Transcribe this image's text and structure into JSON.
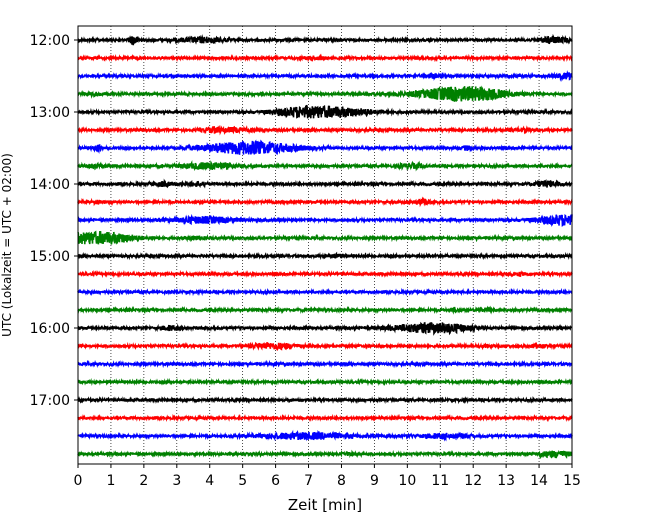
{
  "chart_data": {
    "type": "line",
    "title": "",
    "xlabel": "Zeit  [min]",
    "ylabel": "UTC (Lokalzeit = UTC + 02:00)",
    "xlim": [
      0,
      15
    ],
    "x_ticks": [
      0,
      1,
      2,
      3,
      4,
      5,
      6,
      7,
      8,
      9,
      10,
      11,
      12,
      13,
      14,
      15
    ],
    "y_ticks": [
      {
        "value": 0,
        "label": "12:00"
      },
      {
        "value": 4,
        "label": "13:00"
      },
      {
        "value": 8,
        "label": "14:00"
      },
      {
        "value": 12,
        "label": "15:00"
      },
      {
        "value": 16,
        "label": "16:00"
      },
      {
        "value": 20,
        "label": "17:00"
      }
    ],
    "vertical_grid": true,
    "grid_style": "dotted",
    "trace_colors": [
      "#000000",
      "#ff0000",
      "#0000ff",
      "#008000"
    ],
    "traces": [
      {
        "start": "12:00",
        "events": [
          [
            1.7,
            4.5,
            0.1
          ],
          [
            3.8,
            2.5,
            0.5
          ],
          [
            14.4,
            3,
            0.3
          ]
        ]
      },
      {
        "start": "12:15",
        "events": [
          [
            7.3,
            1.2,
            0.2
          ]
        ]
      },
      {
        "start": "12:30",
        "events": [
          [
            10.8,
            2,
            0.1
          ],
          [
            14.9,
            2.5,
            0.3
          ]
        ]
      },
      {
        "start": "12:45",
        "events": [
          [
            0.5,
            1.5,
            0.1
          ],
          [
            11.5,
            6,
            0.9
          ],
          [
            12.4,
            2,
            0.6
          ]
        ]
      },
      {
        "start": "13:00",
        "events": [
          [
            7.6,
            5,
            0.9
          ],
          [
            6.6,
            2,
            0.5
          ]
        ]
      },
      {
        "start": "13:15",
        "events": [
          [
            4.6,
            2,
            0.5
          ],
          [
            4.1,
            1.5,
            0.1
          ],
          [
            13.5,
            1.3,
            0.2
          ]
        ]
      },
      {
        "start": "13:30",
        "events": [
          [
            5.2,
            6,
            1.0
          ],
          [
            0.6,
            3,
            0.1
          ],
          [
            11.8,
            2,
            0.1
          ]
        ]
      },
      {
        "start": "13:45",
        "events": [
          [
            4.0,
            3,
            0.6
          ],
          [
            0.5,
            1.5,
            0.2
          ],
          [
            10.1,
            2,
            0.3
          ]
        ]
      },
      {
        "start": "14:00",
        "events": [
          [
            2.6,
            2,
            0.2
          ],
          [
            3.6,
            2,
            0.2
          ],
          [
            14.2,
            2.5,
            0.3
          ]
        ]
      },
      {
        "start": "14:15",
        "events": [
          [
            10.4,
            2,
            0.2
          ],
          [
            0.6,
            1.5,
            0.1
          ]
        ]
      },
      {
        "start": "14:30",
        "events": [
          [
            3.8,
            3,
            0.7
          ],
          [
            14.8,
            5,
            0.6
          ]
        ]
      },
      {
        "start": "14:45",
        "events": [
          [
            0.3,
            5,
            0.8
          ],
          [
            1.1,
            2,
            0.5
          ],
          [
            3.6,
            1.5,
            0.2
          ]
        ]
      },
      {
        "start": "15:00",
        "events": [
          [
            7.9,
            1.5,
            0.2
          ]
        ]
      },
      {
        "start": "15:15",
        "events": [
          [
            13.3,
            1.3,
            0.2
          ]
        ]
      },
      {
        "start": "15:30",
        "events": []
      },
      {
        "start": "15:45",
        "events": [
          [
            11.4,
            1.5,
            0.1
          ],
          [
            12.4,
            1.5,
            0.1
          ]
        ]
      },
      {
        "start": "16:00",
        "events": [
          [
            10.5,
            4,
            0.8
          ],
          [
            2.8,
            2,
            0.2
          ],
          [
            11.3,
            2,
            0.4
          ]
        ]
      },
      {
        "start": "16:15",
        "events": [
          [
            5.7,
            2,
            0.4
          ],
          [
            6.3,
            1.5,
            0.3
          ],
          [
            12.4,
            1.5,
            0.1
          ],
          [
            13.9,
            1.5,
            0.2
          ]
        ]
      },
      {
        "start": "16:30",
        "events": []
      },
      {
        "start": "16:45",
        "events": []
      },
      {
        "start": "17:00",
        "events": [
          [
            0.1,
            1,
            0.1
          ]
        ]
      },
      {
        "start": "17:15",
        "events": []
      },
      {
        "start": "17:30",
        "events": [
          [
            6.9,
            3,
            1.0
          ],
          [
            11.1,
            2,
            0.5
          ]
        ]
      },
      {
        "start": "17:45",
        "events": [
          [
            14.5,
            2.5,
            0.4
          ],
          [
            8.3,
            1.2,
            0.2
          ]
        ]
      }
    ]
  }
}
